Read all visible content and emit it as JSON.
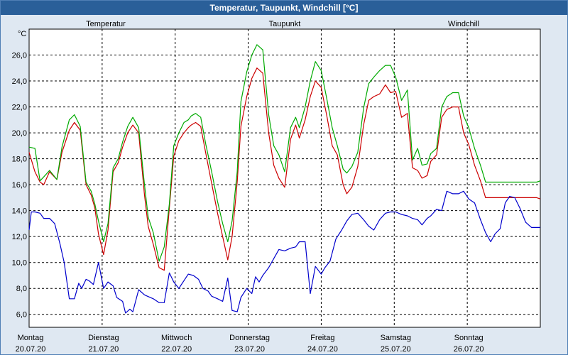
{
  "title": "Temperatur, Taupunkt, Windchill [°C]",
  "chart_data": {
    "type": "line",
    "title": "Temperatur, Taupunkt, Windchill [°C]",
    "unit_label": "°C",
    "ylim": [
      5,
      28
    ],
    "xlim": [
      0,
      7.0
    ],
    "grid": true,
    "legend_placement": "top",
    "yticks": [
      {
        "v": 6,
        "label": "6,0"
      },
      {
        "v": 8,
        "label": "8,0"
      },
      {
        "v": 10,
        "label": "10,0"
      },
      {
        "v": 12,
        "label": "12,0"
      },
      {
        "v": 14,
        "label": "14,0"
      },
      {
        "v": 16,
        "label": "16,0"
      },
      {
        "v": 18,
        "label": "18,0"
      },
      {
        "v": 20,
        "label": "20,0"
      },
      {
        "v": 22,
        "label": "22,0"
      },
      {
        "v": 24,
        "label": "24,0"
      },
      {
        "v": 26,
        "label": "26,0"
      }
    ],
    "days": [
      {
        "name": "Montag",
        "date": "20.07.20"
      },
      {
        "name": "Dienstag",
        "date": "21.07.20"
      },
      {
        "name": "Mittwoch",
        "date": "22.07.20"
      },
      {
        "name": "Donnerstag",
        "date": "23.07.20"
      },
      {
        "name": "Freitag",
        "date": "24.07.20"
      },
      {
        "name": "Samstag",
        "date": "25.07.20"
      },
      {
        "name": "Sonntag",
        "date": "26.07.20"
      }
    ],
    "series": [
      {
        "name": "Temperatur",
        "color": "#cc0000",
        "x": [
          0,
          0.08,
          0.15,
          0.2,
          0.28,
          0.38,
          0.45,
          0.55,
          0.62,
          0.7,
          0.78,
          0.85,
          0.9,
          0.95,
          1.02,
          1.08,
          1.15,
          1.22,
          1.28,
          1.35,
          1.42,
          1.5,
          1.58,
          1.63,
          1.7,
          1.78,
          1.85,
          1.92,
          1.98,
          2.05,
          2.12,
          2.18,
          2.22,
          2.28,
          2.35,
          2.42,
          2.5,
          2.58,
          2.65,
          2.72,
          2.78,
          2.85,
          2.9,
          2.98,
          3.05,
          3.12,
          3.2,
          3.28,
          3.35,
          3.42,
          3.5,
          3.58,
          3.65,
          3.7,
          3.78,
          3.85,
          3.92,
          4.0,
          4.08,
          4.15,
          4.22,
          4.3,
          4.35,
          4.42,
          4.5,
          4.58,
          4.65,
          4.72,
          4.8,
          4.88,
          4.95,
          5.02,
          5.1,
          5.18,
          5.25,
          5.32,
          5.38,
          5.45,
          5.5,
          5.58,
          5.65,
          5.72,
          5.8,
          5.88,
          5.95,
          6.02,
          6.1,
          6.18,
          6.25,
          6.32,
          6.38,
          6.45,
          6.52,
          6.58,
          6.65,
          6.72,
          6.8,
          6.88,
          6.95,
          7.0
        ],
        "y": [
          18.5,
          17.0,
          16.2,
          16.0,
          17.0,
          16.4,
          18.5,
          20.2,
          20.8,
          20.2,
          16.0,
          15.2,
          14.2,
          12.2,
          10.6,
          12.5,
          17.0,
          17.7,
          18.9,
          20.0,
          20.6,
          20.0,
          15.2,
          12.8,
          11.4,
          9.6,
          9.4,
          14.2,
          18.2,
          19.4,
          20.0,
          20.4,
          20.6,
          20.8,
          20.5,
          18.4,
          16.1,
          13.8,
          12.0,
          10.2,
          12.0,
          16.2,
          20.5,
          22.8,
          24.2,
          25.0,
          24.6,
          20.0,
          17.5,
          16.5,
          15.8,
          19.5,
          20.6,
          19.6,
          21.0,
          22.8,
          24.0,
          23.5,
          21.2,
          19.0,
          18.3,
          16.0,
          15.3,
          15.8,
          17.4,
          20.6,
          22.5,
          22.8,
          23.0,
          23.7,
          23.1,
          23.2,
          21.2,
          21.5,
          17.3,
          17.1,
          16.5,
          16.7,
          17.8,
          18.3,
          21.2,
          21.8,
          22.0,
          22.0,
          20.0,
          19.1,
          17.5,
          16.3,
          15.0,
          15.0,
          15.0,
          15.0,
          15.0,
          15.0,
          15.0,
          15.0,
          15.0,
          15.0,
          15.0,
          14.9
        ]
      },
      {
        "name": "Taupunkt",
        "color": "#0000cc",
        "x": [
          0,
          0.03,
          0.08,
          0.15,
          0.2,
          0.28,
          0.35,
          0.42,
          0.48,
          0.55,
          0.62,
          0.68,
          0.72,
          0.78,
          0.82,
          0.88,
          0.95,
          1.02,
          1.08,
          1.15,
          1.2,
          1.28,
          1.32,
          1.38,
          1.42,
          1.5,
          1.58,
          1.62,
          1.7,
          1.78,
          1.85,
          1.92,
          1.98,
          2.05,
          2.12,
          2.18,
          2.25,
          2.32,
          2.38,
          2.45,
          2.5,
          2.58,
          2.65,
          2.72,
          2.78,
          2.85,
          2.9,
          2.98,
          3.05,
          3.1,
          3.15,
          3.2,
          3.28,
          3.35,
          3.42,
          3.5,
          3.58,
          3.65,
          3.7,
          3.78,
          3.85,
          3.92,
          4.0,
          4.05,
          4.12,
          4.2,
          4.28,
          4.35,
          4.42,
          4.5,
          4.58,
          4.65,
          4.72,
          4.8,
          4.88,
          4.95,
          5.02,
          5.1,
          5.18,
          5.25,
          5.32,
          5.38,
          5.45,
          5.5,
          5.58,
          5.65,
          5.72,
          5.8,
          5.88,
          5.95,
          6.02,
          6.1,
          6.18,
          6.25,
          6.32,
          6.38,
          6.45,
          6.52,
          6.58,
          6.65,
          6.72,
          6.8,
          6.88,
          6.95,
          7.0
        ],
        "y": [
          12.5,
          13.9,
          13.9,
          13.8,
          13.4,
          13.4,
          13.0,
          11.5,
          10.0,
          7.2,
          7.2,
          8.4,
          8.0,
          8.7,
          8.6,
          8.3,
          10.0,
          8.0,
          8.5,
          8.2,
          7.3,
          7.0,
          6.1,
          6.4,
          6.2,
          7.9,
          7.5,
          7.4,
          7.2,
          6.9,
          6.9,
          9.2,
          8.5,
          8.0,
          8.6,
          9.1,
          9.0,
          8.7,
          8.0,
          7.8,
          7.4,
          7.2,
          7.0,
          8.8,
          6.3,
          6.2,
          7.3,
          8.0,
          7.6,
          8.9,
          8.5,
          9.0,
          9.6,
          10.3,
          11.0,
          10.9,
          11.1,
          11.2,
          11.6,
          11.6,
          7.6,
          9.7,
          9.1,
          9.6,
          10.1,
          11.8,
          12.5,
          13.2,
          13.7,
          13.8,
          13.3,
          12.8,
          12.5,
          13.3,
          13.8,
          13.9,
          13.9,
          13.7,
          13.6,
          13.4,
          13.3,
          12.9,
          13.4,
          13.6,
          14.1,
          14.0,
          15.5,
          15.3,
          15.3,
          15.5,
          14.9,
          14.6,
          13.3,
          12.3,
          11.6,
          12.2,
          12.6,
          14.6,
          15.1,
          15.0,
          14.2,
          13.1,
          12.7,
          12.7,
          12.7
        ]
      },
      {
        "name": "Windchill",
        "color": "#00aa00",
        "x": [
          0,
          0.08,
          0.15,
          0.2,
          0.28,
          0.38,
          0.45,
          0.55,
          0.62,
          0.7,
          0.78,
          0.85,
          0.9,
          0.95,
          1.02,
          1.08,
          1.15,
          1.22,
          1.28,
          1.35,
          1.42,
          1.5,
          1.58,
          1.63,
          1.7,
          1.78,
          1.85,
          1.92,
          1.98,
          2.05,
          2.12,
          2.18,
          2.22,
          2.28,
          2.35,
          2.42,
          2.5,
          2.58,
          2.65,
          2.72,
          2.78,
          2.85,
          2.9,
          2.98,
          3.05,
          3.12,
          3.2,
          3.28,
          3.35,
          3.42,
          3.5,
          3.58,
          3.65,
          3.7,
          3.78,
          3.85,
          3.92,
          4.0,
          4.08,
          4.15,
          4.22,
          4.3,
          4.35,
          4.42,
          4.5,
          4.58,
          4.65,
          4.72,
          4.8,
          4.88,
          4.95,
          5.02,
          5.1,
          5.18,
          5.25,
          5.32,
          5.38,
          5.45,
          5.5,
          5.58,
          5.65,
          5.72,
          5.8,
          5.88,
          5.95,
          6.02,
          6.1,
          6.18,
          6.25,
          6.32,
          6.38,
          6.45,
          6.52,
          6.58,
          6.65,
          6.72,
          6.8,
          6.88,
          6.95,
          7.0
        ],
        "y": [
          18.9,
          18.8,
          16.3,
          16.6,
          17.1,
          16.4,
          18.9,
          21.0,
          21.4,
          20.5,
          16.2,
          15.5,
          14.5,
          13.2,
          11.6,
          13.0,
          17.3,
          18.0,
          19.3,
          20.5,
          21.2,
          20.4,
          16.0,
          13.5,
          12.3,
          10.1,
          11.2,
          14.5,
          19.0,
          20.0,
          20.8,
          21.0,
          21.3,
          21.5,
          21.2,
          19.1,
          17.0,
          14.7,
          13.0,
          11.6,
          13.2,
          17.0,
          22.4,
          24.7,
          26.0,
          26.8,
          26.4,
          21.4,
          19.0,
          18.3,
          17.0,
          20.4,
          21.2,
          20.4,
          22.0,
          24.0,
          25.5,
          24.8,
          22.5,
          20.4,
          19.0,
          17.2,
          16.9,
          17.4,
          18.5,
          21.9,
          23.8,
          24.3,
          24.8,
          25.2,
          25.2,
          24.3,
          22.5,
          23.3,
          17.9,
          18.8,
          17.5,
          17.6,
          18.4,
          18.8,
          22.0,
          22.8,
          23.1,
          23.1,
          21.3,
          20.4,
          18.8,
          17.5,
          16.2,
          16.2,
          16.2,
          16.2,
          16.2,
          16.2,
          16.2,
          16.2,
          16.2,
          16.2,
          16.2,
          16.3
        ]
      }
    ]
  }
}
